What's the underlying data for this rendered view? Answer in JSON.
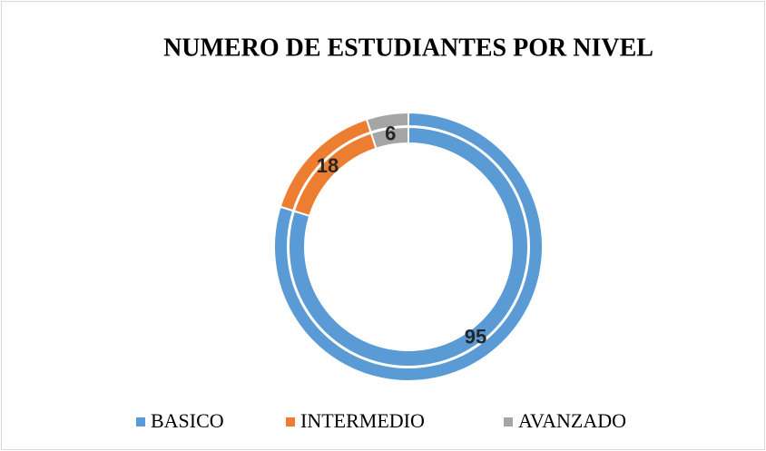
{
  "chart_data": {
    "type": "doughnut",
    "title": "NUMERO DE ESTUDIANTES POR NIVEL",
    "categories": [
      "BASICO",
      "INTERMEDIO",
      "AVANZADO"
    ],
    "values": [
      95,
      18,
      6
    ],
    "colors": [
      "#5b9bd5",
      "#ed7d31",
      "#a5a5a5"
    ],
    "legend": "bottom"
  }
}
